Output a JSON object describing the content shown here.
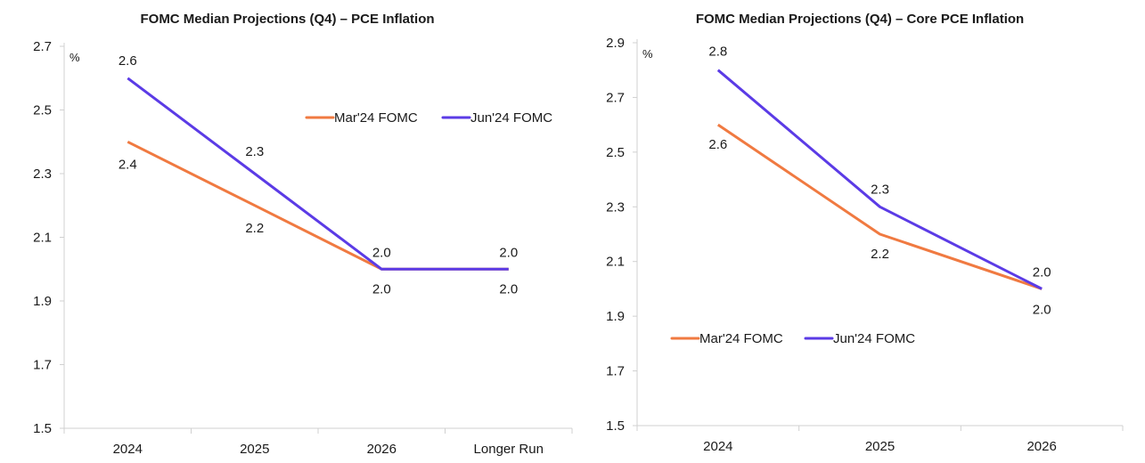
{
  "chart_data": [
    {
      "type": "line",
      "title": "FOMC Median Projections (Q4) – PCE Inflation",
      "unit_label": "%",
      "categories": [
        "2024",
        "2025",
        "2026",
        "Longer Run"
      ],
      "ylim": [
        1.5,
        2.7
      ],
      "yticks": [
        "1.5",
        "1.7",
        "1.9",
        "2.1",
        "2.3",
        "2.5",
        "2.7"
      ],
      "grid": false,
      "legend_position": "top-right",
      "series": [
        {
          "name": "Mar'24 FOMC",
          "color": "#F07A41",
          "values": [
            2.4,
            2.2,
            2.0,
            2.0
          ],
          "labels": [
            "2.4",
            "2.2",
            "2.0",
            "2.0"
          ]
        },
        {
          "name": "Jun'24 FOMC",
          "color": "#5B3BE6",
          "values": [
            2.6,
            2.3,
            2.0,
            2.0
          ],
          "labels": [
            "2.6",
            "2.3",
            "2.0",
            "2.0"
          ]
        }
      ]
    },
    {
      "type": "line",
      "title": "FOMC Median Projections (Q4) – Core PCE Inflation",
      "unit_label": "%",
      "categories": [
        "2024",
        "2025",
        "2026"
      ],
      "ylim": [
        1.5,
        2.9
      ],
      "yticks": [
        "1.5",
        "1.7",
        "1.9",
        "2.1",
        "2.3",
        "2.5",
        "2.7",
        "2.9"
      ],
      "grid": false,
      "legend_position": "middle-left",
      "series": [
        {
          "name": "Mar'24 FOMC",
          "color": "#F07A41",
          "values": [
            2.6,
            2.2,
            2.0
          ],
          "labels": [
            "2.6",
            "2.2",
            "2.0"
          ]
        },
        {
          "name": "Jun'24 FOMC",
          "color": "#5B3BE6",
          "values": [
            2.8,
            2.3,
            2.0
          ],
          "labels": [
            "2.8",
            "2.3",
            "2.0"
          ]
        }
      ]
    }
  ]
}
